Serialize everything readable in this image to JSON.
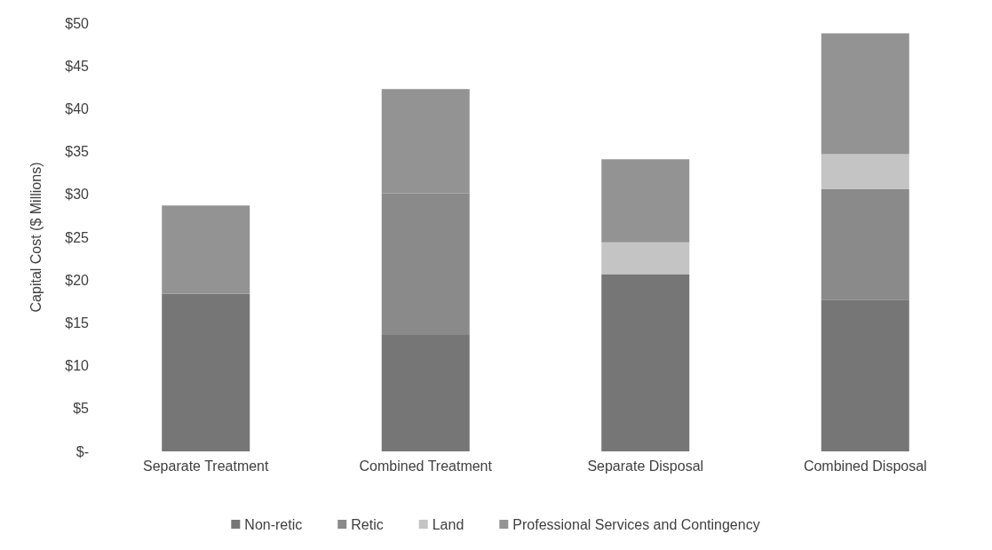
{
  "chart_data": {
    "type": "bar",
    "stacked": true,
    "ylabel": "Capital Cost ($ Millions)",
    "categories": [
      "Separate Treatment",
      "Combined Treatment",
      "Separate Disposal",
      "Combined Disposal"
    ],
    "series": [
      {
        "name": "Non-retic",
        "color": "#767676",
        "values": [
          18.4,
          13.6,
          20.7,
          17.7
        ]
      },
      {
        "name": "Retic",
        "color": "#8a8a8a",
        "values": [
          0,
          16.5,
          0,
          12.9
        ]
      },
      {
        "name": "Land",
        "color": "#c4c4c4",
        "values": [
          0,
          0,
          3.7,
          4.1
        ]
      },
      {
        "name": "Professional Services and Contingency",
        "color": "#939393",
        "values": [
          10.3,
          12.2,
          9.7,
          14.1
        ]
      }
    ],
    "ylim": [
      0,
      50
    ],
    "yticks": [
      {
        "value": 0,
        "label": "$-"
      },
      {
        "value": 5,
        "label": "$5"
      },
      {
        "value": 10,
        "label": "$10"
      },
      {
        "value": 15,
        "label": "$15"
      },
      {
        "value": 20,
        "label": "$20"
      },
      {
        "value": 25,
        "label": "$25"
      },
      {
        "value": 30,
        "label": "$30"
      },
      {
        "value": 35,
        "label": "$35"
      },
      {
        "value": 40,
        "label": "$40"
      },
      {
        "value": 45,
        "label": "$45"
      },
      {
        "value": 50,
        "label": "$50"
      }
    ],
    "grid": false,
    "legend": "bottom"
  }
}
